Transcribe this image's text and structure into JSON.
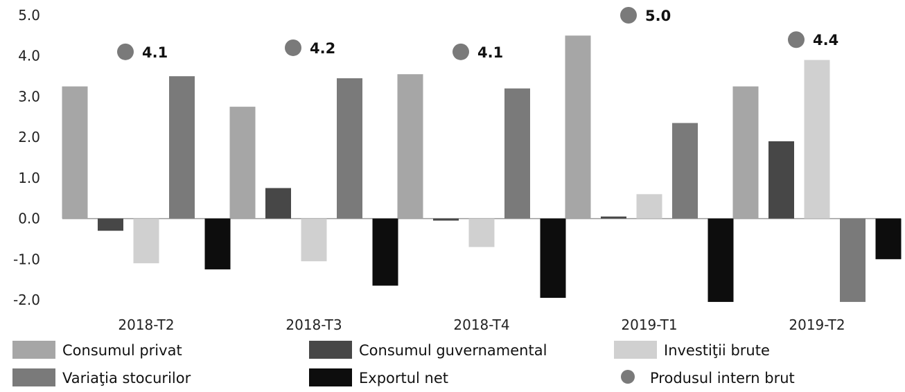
{
  "chart_data": {
    "type": "bar",
    "categories": [
      "2018-T2",
      "2018-T3",
      "2018-T4",
      "2019-T1",
      "2019-T2"
    ],
    "ylim": [
      -2.0,
      5.0
    ],
    "yticks": [
      5.0,
      4.0,
      3.0,
      2.0,
      1.0,
      0.0,
      -1.0,
      -2.0
    ],
    "ytick_labels": [
      "5.0",
      "4.0",
      "3.0",
      "2.0",
      "1.0",
      "0.0",
      "-1.0",
      "-2.0"
    ],
    "series": [
      {
        "name": "Consumul privat",
        "kind": "bar",
        "color": "#a6a6a6",
        "values": [
          3.25,
          2.75,
          3.55,
          4.5,
          3.25
        ]
      },
      {
        "name": "Consumul guvernamental",
        "kind": "bar",
        "color": "#474747",
        "values": [
          -0.3,
          0.75,
          -0.05,
          0.05,
          1.9
        ]
      },
      {
        "name": "Investiţii brute",
        "kind": "bar",
        "color": "#d0d0d0",
        "values": [
          -1.1,
          -1.05,
          -0.7,
          0.6,
          3.9
        ]
      },
      {
        "name": "Variaţia stocurilor",
        "kind": "bar",
        "color": "#7a7a7a",
        "values": [
          3.5,
          3.45,
          3.2,
          2.35,
          -2.05
        ]
      },
      {
        "name": "Exportul net",
        "kind": "bar",
        "color": "#0d0d0d",
        "values": [
          -1.25,
          -1.65,
          -1.95,
          -2.05,
          -1.0
        ]
      },
      {
        "name": "Produsul intern brut",
        "kind": "point",
        "color": "#7a7a7a",
        "values": [
          4.1,
          4.2,
          4.1,
          5.0,
          4.4
        ],
        "labels": [
          "4.1",
          "4.2",
          "4.1",
          "5.0",
          "4.4"
        ]
      }
    ],
    "legend_position": "bottom",
    "grid": false
  }
}
